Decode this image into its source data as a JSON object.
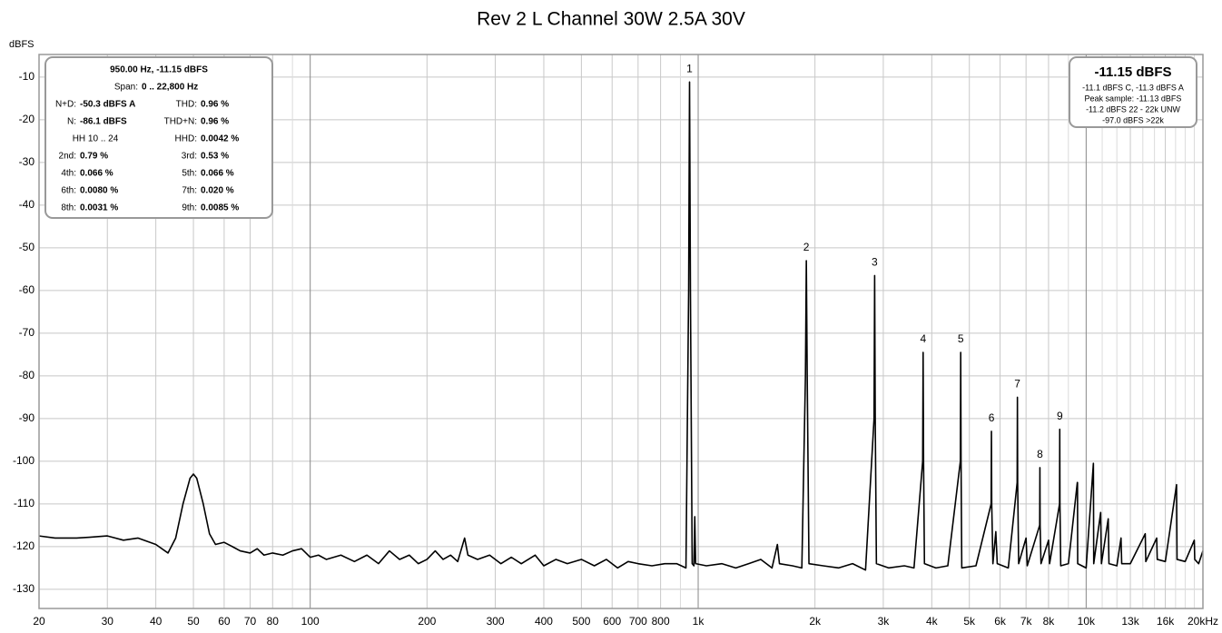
{
  "chart_data": {
    "type": "line",
    "title": "Rev 2 L Channel 30W 2.5A 30V",
    "y_label": "dBFS",
    "log_x": true,
    "grid": true,
    "color": "#000000",
    "xlim": [
      20,
      20000
    ],
    "ylim": [
      -134.5,
      -4.7
    ],
    "xticks": [
      20,
      30,
      40,
      50,
      60,
      70,
      80,
      100,
      200,
      300,
      400,
      500,
      600,
      700,
      800,
      {
        "value": 1000,
        "label": "1k"
      },
      {
        "value": 2000,
        "label": "2k"
      },
      {
        "value": 3000,
        "label": "3k"
      },
      {
        "value": 4000,
        "label": "4k"
      },
      {
        "value": 5000,
        "label": "5k"
      },
      {
        "value": 6000,
        "label": "6k"
      },
      {
        "value": 7000,
        "label": "7k"
      },
      {
        "value": 8000,
        "label": "8k"
      },
      {
        "value": 10000,
        "label": "10k"
      },
      {
        "value": 13000,
        "label": "13k"
      },
      {
        "value": 16000,
        "label": "16k"
      },
      {
        "value": 20000,
        "label": "20kHz"
      }
    ],
    "xminor": [
      90,
      900,
      9000,
      11000,
      12000,
      14000,
      15000,
      17000,
      18000,
      19000
    ],
    "yticks": [
      -10,
      -20,
      -30,
      -40,
      -50,
      -60,
      -70,
      -80,
      -90,
      -100,
      -110,
      -120,
      -130
    ],
    "x": [
      20,
      22,
      25,
      27,
      30,
      33,
      36,
      40,
      43,
      45,
      47,
      49,
      50,
      51,
      53,
      55,
      57,
      60,
      63,
      66,
      70,
      73,
      76,
      80,
      85,
      90,
      95,
      100,
      105,
      110,
      120,
      130,
      140,
      150,
      160,
      170,
      180,
      190,
      200,
      210,
      220,
      230,
      240,
      250,
      255,
      270,
      290,
      310,
      330,
      350,
      380,
      400,
      430,
      460,
      500,
      540,
      580,
      620,
      660,
      700,
      760,
      820,
      880,
      930,
      945,
      950,
      955,
      965,
      975,
      980,
      985,
      1050,
      1150,
      1250,
      1350,
      1450,
      1550,
      1600,
      1620,
      1750,
      1850,
      1890,
      1900,
      1910,
      1930,
      2100,
      2300,
      2500,
      2700,
      2840,
      2850,
      2860,
      2880,
      3100,
      3400,
      3600,
      3790,
      3800,
      3810,
      3830,
      4100,
      4400,
      4740,
      4750,
      4760,
      4780,
      5200,
      5690,
      5700,
      5710,
      5750,
      5850,
      5900,
      6300,
      6640,
      6650,
      6660,
      6700,
      7000,
      7050,
      7590,
      7600,
      7610,
      7650,
      8000,
      8050,
      8540,
      8550,
      8560,
      8600,
      9000,
      9490,
      9500,
      9510,
      10000,
      10440,
      10460,
      10900,
      10950,
      11400,
      11450,
      12000,
      12300,
      12350,
      13000,
      14200,
      14250,
      15200,
      15250,
      16000,
      17100,
      17150,
      18000,
      19000,
      19050,
      19500,
      20000
    ],
    "values": [
      -117.5,
      -118,
      -118,
      -117.8,
      -117.5,
      -118.5,
      -118,
      -119.5,
      -121.5,
      -118,
      -110,
      -104,
      -103,
      -104,
      -110,
      -117,
      -119.5,
      -119,
      -120,
      -121,
      -121.5,
      -120.5,
      -122,
      -121.5,
      -122,
      -121,
      -120.5,
      -122.5,
      -122,
      -123,
      -122,
      -123.5,
      -122,
      -124,
      -121,
      -123,
      -122,
      -124,
      -123,
      -121,
      -123,
      -122,
      -123.5,
      -118,
      -122,
      -123,
      -122,
      -124,
      -122.5,
      -124,
      -122,
      -124.5,
      -123,
      -124,
      -123,
      -124.5,
      -123,
      -125,
      -123.5,
      -124,
      -124.5,
      -124,
      -124,
      -125,
      -60,
      -11.15,
      -60,
      -124,
      -124.5,
      -113,
      -124,
      -124.5,
      -124,
      -125,
      -124,
      -123,
      -125,
      -119.5,
      -124,
      -124.5,
      -125,
      -80,
      -53,
      -80,
      -124,
      -124.5,
      -125,
      -124,
      -125.5,
      -90,
      -56.5,
      -90,
      -124,
      -125,
      -124.5,
      -125,
      -100,
      -74.5,
      -100,
      -124,
      -125,
      -124.5,
      -100,
      -74.5,
      -100,
      -125,
      -124.5,
      -110,
      -93,
      -110,
      -124,
      -116.5,
      -124,
      -125,
      -105,
      -85,
      -105,
      -124,
      -118,
      -124.5,
      -115,
      -101.5,
      -115,
      -124,
      -118.5,
      -124,
      -110,
      -92.5,
      -110,
      -124.5,
      -124,
      -105,
      -105,
      -124,
      -125,
      -100.5,
      -124,
      -112,
      -124,
      -113.5,
      -124,
      -124.5,
      -118,
      -124,
      -124,
      -117,
      -123.5,
      -118,
      -123,
      -123.5,
      -105.5,
      -123,
      -123.5,
      -118.5,
      -123,
      -124,
      -121
    ],
    "harmonics": [
      {
        "label": "1",
        "x": 950,
        "y": -11.15
      },
      {
        "label": "2",
        "x": 1900,
        "y": -53
      },
      {
        "label": "3",
        "x": 2850,
        "y": -56.5
      },
      {
        "label": "4",
        "x": 3800,
        "y": -74.5
      },
      {
        "label": "5",
        "x": 4750,
        "y": -74.5
      },
      {
        "label": "6",
        "x": 5700,
        "y": -93
      },
      {
        "label": "7",
        "x": 6650,
        "y": -85
      },
      {
        "label": "8",
        "x": 7600,
        "y": -101.5
      },
      {
        "label": "9",
        "x": 8550,
        "y": -92.5
      }
    ],
    "info_box": {
      "heading": "950.00 Hz, -11.15 dBFS",
      "span_label": "Span:",
      "span_value": "0 .. 22,800 Hz",
      "rows": [
        [
          {
            "label": "N+D:",
            "value": "-50.3 dBFS A"
          },
          {
            "label": "THD:",
            "value": "0.96 %"
          }
        ],
        [
          {
            "label": "N:",
            "value": "-86.1 dBFS"
          },
          {
            "label": "THD+N:",
            "value": "0.96 %"
          }
        ],
        [
          {
            "label": "HH 10 .. 24"
          },
          {
            "label": "HHD:",
            "value": "0.0042 %"
          }
        ],
        [
          {
            "label": "2nd:",
            "value": "0.79 %"
          },
          {
            "label": "3rd:",
            "value": "0.53 %"
          }
        ],
        [
          {
            "label": "4th:",
            "value": "0.066 %"
          },
          {
            "label": "5th:",
            "value": "0.066 %"
          }
        ],
        [
          {
            "label": "6th:",
            "value": "0.0080 %"
          },
          {
            "label": "7th:",
            "value": "0.020 %"
          }
        ],
        [
          {
            "label": "8th:",
            "value": "0.0031 %"
          },
          {
            "label": "9th:",
            "value": "0.0085 %"
          }
        ]
      ]
    },
    "level_box": {
      "heading": "-11.15 dBFS",
      "lines": [
        "-11.1 dBFS C, -11.3 dBFS A",
        "Peak sample: -11.13 dBFS",
        "-11.2 dBFS 22 - 22k UNW",
        "-97.0 dBFS >22k"
      ]
    }
  }
}
